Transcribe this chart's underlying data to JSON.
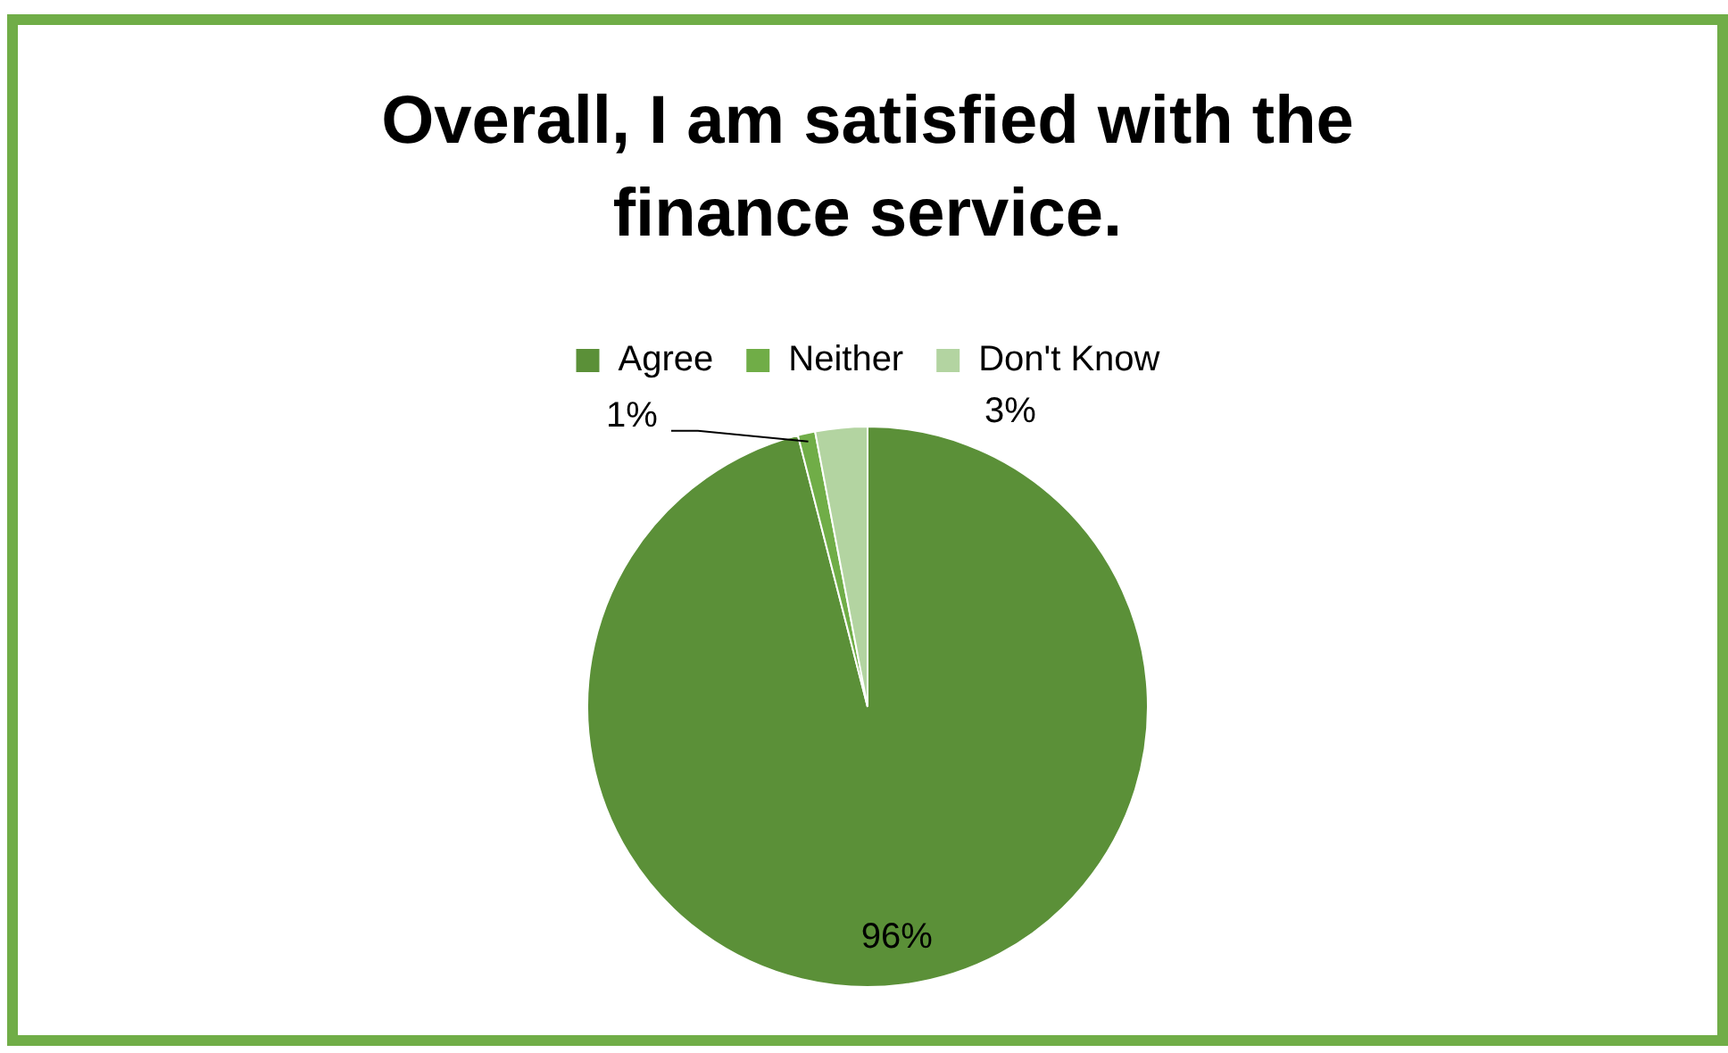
{
  "chart_data": {
    "type": "pie",
    "title": "Overall, I am satisfied with the finance service.",
    "categories": [
      "Agree",
      "Neither",
      "Don't Know"
    ],
    "values": [
      96,
      1,
      3
    ],
    "colors": [
      "#5b9038",
      "#70ad47",
      "#b3d4a1"
    ],
    "value_labels": [
      "96%",
      "1%",
      "3%"
    ],
    "legend": "top"
  }
}
